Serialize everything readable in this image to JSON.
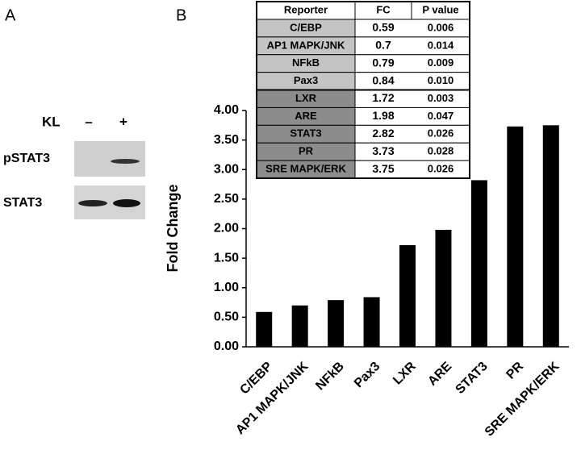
{
  "panel_a": {
    "label": "A",
    "treatment": "KL",
    "minus": "–",
    "plus": "+",
    "rows": [
      "pSTAT3",
      "STAT3"
    ]
  },
  "chart_data": {
    "type": "bar",
    "panel_label": "B",
    "y_label": "Fold Change",
    "categories": [
      "C/EBP",
      "AP1 MAPK/JNK",
      "NFkB",
      "Pax3",
      "LXR",
      "ARE",
      "STAT3",
      "PR",
      "SRE MAPK/ERK"
    ],
    "values": [
      0.59,
      0.7,
      0.79,
      0.84,
      1.72,
      1.98,
      2.82,
      3.73,
      3.75
    ],
    "color": "#000000",
    "ylim": [
      0,
      4
    ],
    "yticks": [
      {
        "value": 0,
        "label": "0.00"
      },
      {
        "value": 0.5,
        "label": "0.50"
      },
      {
        "value": 1,
        "label": "1.00"
      },
      {
        "value": 1.5,
        "label": "1.50"
      },
      {
        "value": 2,
        "label": "2.00"
      },
      {
        "value": 2.5,
        "label": "2.50"
      },
      {
        "value": 3,
        "label": "3.00"
      },
      {
        "value": 3.5,
        "label": "3.50"
      },
      {
        "value": 4,
        "label": "4.00"
      }
    ],
    "table_header": [
      "Reporter",
      "FC",
      "P value"
    ],
    "p_values": [
      "0.006",
      "0.014",
      "0.009",
      "0.010",
      "0.003",
      "0.047",
      "0.026",
      "0.028",
      "0.026"
    ]
  }
}
